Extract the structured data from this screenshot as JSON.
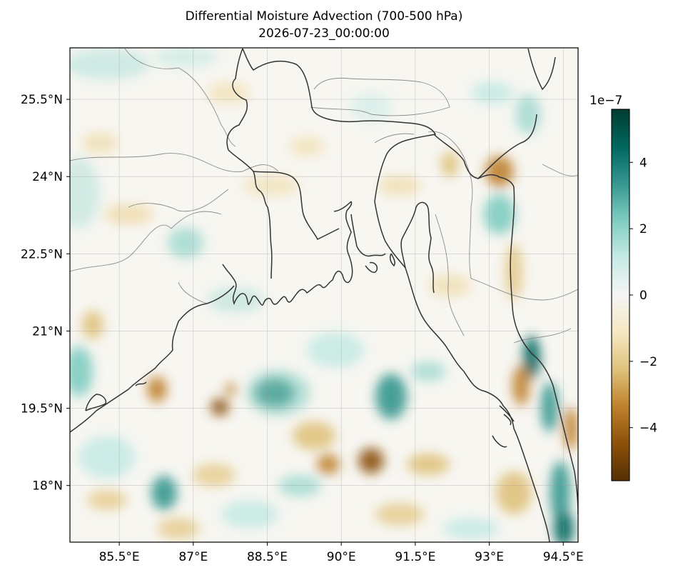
{
  "title": "Differential Moisture Advection (700-500 hPa)",
  "timestamp": "2026-07-23_00:00:00",
  "map": {
    "lon_range": [
      84.5,
      94.8
    ],
    "lat_range": [
      16.9,
      26.5
    ],
    "x_ticks": [
      {
        "value": 85.5,
        "label": "85.5°E"
      },
      {
        "value": 87,
        "label": "87°E"
      },
      {
        "value": 88.5,
        "label": "88.5°E"
      },
      {
        "value": 90,
        "label": "90°E"
      },
      {
        "value": 91.5,
        "label": "91.5°E"
      },
      {
        "value": 93,
        "label": "93°E"
      },
      {
        "value": 94.5,
        "label": "94.5°E"
      }
    ],
    "y_ticks": [
      {
        "value": 25.5,
        "label": "25.5°N"
      },
      {
        "value": 24,
        "label": "24°N"
      },
      {
        "value": 22.5,
        "label": "22.5°N"
      },
      {
        "value": 21,
        "label": "21°N"
      },
      {
        "value": 19.5,
        "label": "19.5°N"
      },
      {
        "value": 18,
        "label": "18°N"
      }
    ],
    "gridlines": true
  },
  "colorbar": {
    "colormap": "BrBG",
    "multiplier_label": "1e−7",
    "range": [
      -5.6,
      5.6
    ],
    "ticks": [
      {
        "value": 4,
        "label": "4"
      },
      {
        "value": 2,
        "label": "2"
      },
      {
        "value": 0,
        "label": "0"
      },
      {
        "value": -2,
        "label": "−2"
      },
      {
        "value": -4,
        "label": "−4"
      }
    ],
    "colors": [
      "#543005",
      "#8c510a",
      "#bf812d",
      "#dfc27d",
      "#f6e8c3",
      "#f5f5f5",
      "#c7eae5",
      "#80cdc1",
      "#35978f",
      "#01665e",
      "#003c30"
    ]
  }
}
